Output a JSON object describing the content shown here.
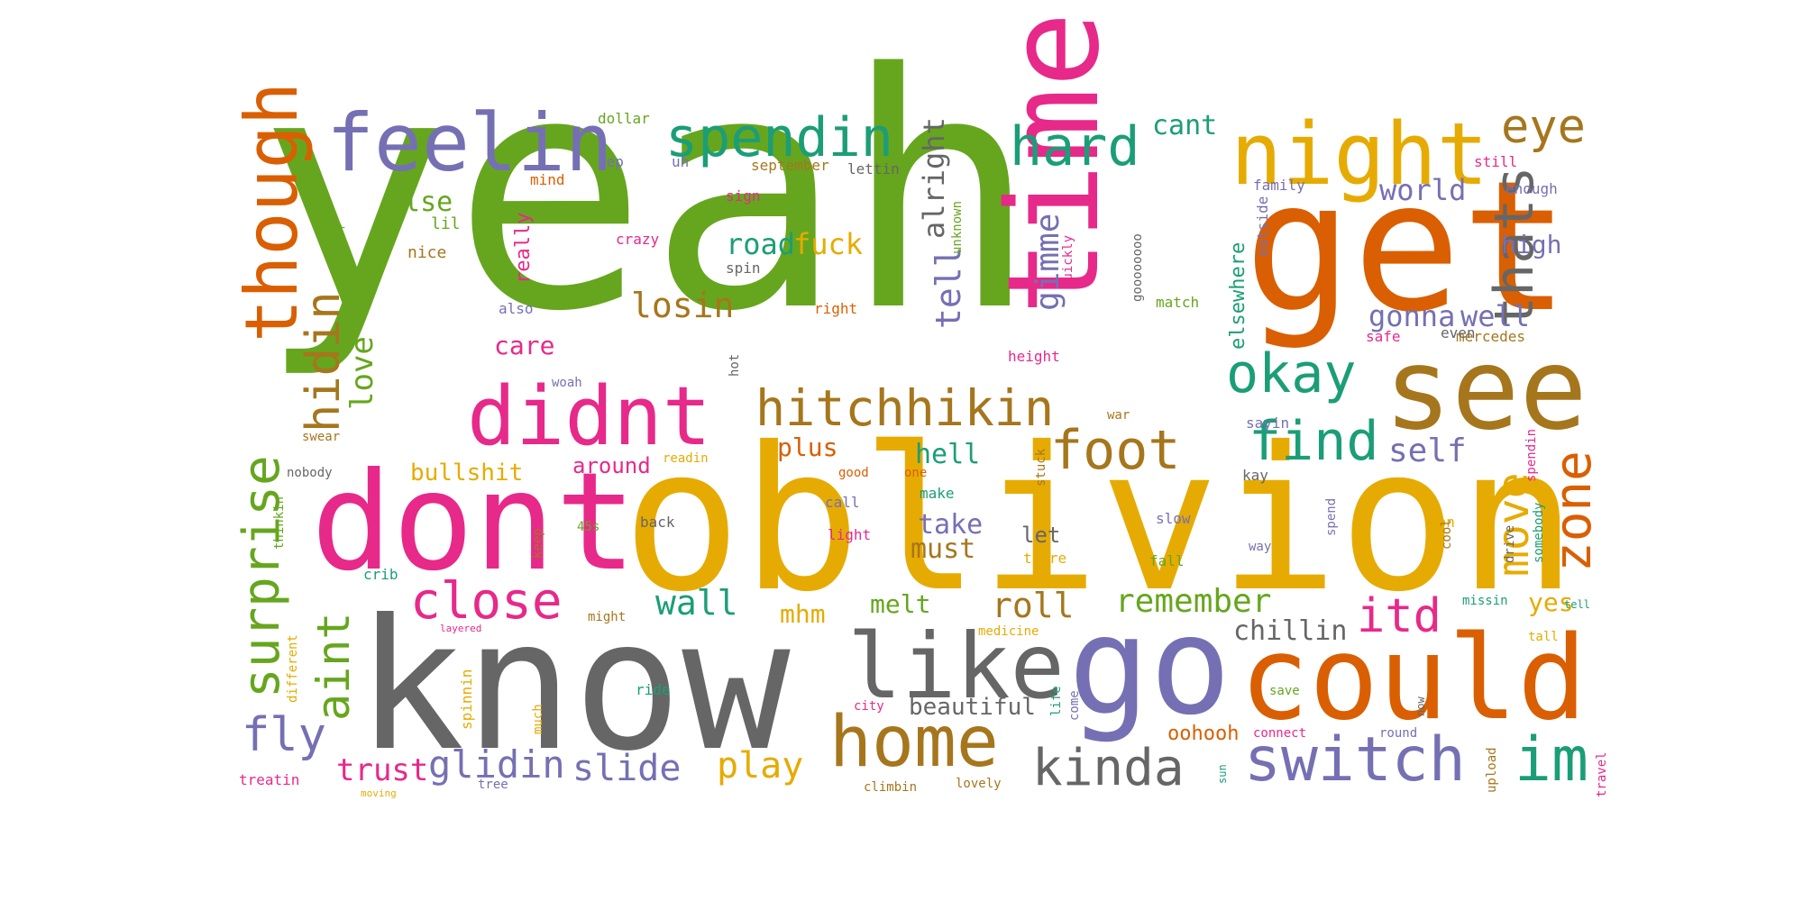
{
  "words": [
    {
      "text": "yeah",
      "color": "#66a61e"
    },
    {
      "text": "oblivion",
      "color": "#e6ab02"
    },
    {
      "text": "know",
      "color": "#666666"
    },
    {
      "text": "get",
      "color": "#d95f02"
    },
    {
      "text": "dont",
      "color": "#e7298a"
    },
    {
      "text": "time",
      "color": "#e7298a"
    },
    {
      "text": "go",
      "color": "#7570b3"
    },
    {
      "text": "could",
      "color": "#d95f02"
    },
    {
      "text": "see",
      "color": "#a6761d"
    },
    {
      "text": "night",
      "color": "#e6ab02"
    },
    {
      "text": "didnt",
      "color": "#e7298a"
    },
    {
      "text": "feelin",
      "color": "#7570b3"
    },
    {
      "text": "though",
      "color": "#d95f02"
    },
    {
      "text": "like",
      "color": "#666666"
    },
    {
      "text": "home",
      "color": "#a6761d"
    },
    {
      "text": "switch",
      "color": "#7570b3"
    },
    {
      "text": "im",
      "color": "#1b9e77"
    },
    {
      "text": "hitchhikin",
      "color": "#a6761d"
    },
    {
      "text": "spendin",
      "color": "#1b9e77"
    },
    {
      "text": "hard",
      "color": "#1b9e77"
    },
    {
      "text": "surprise",
      "color": "#66a61e"
    },
    {
      "text": "okay",
      "color": "#1b9e77"
    },
    {
      "text": "thats",
      "color": "#666666"
    },
    {
      "text": "foot",
      "color": "#a6761d"
    },
    {
      "text": "find",
      "color": "#1b9e77"
    },
    {
      "text": "zone",
      "color": "#d95f02"
    },
    {
      "text": "close",
      "color": "#e7298a"
    },
    {
      "text": "kinda",
      "color": "#666666"
    },
    {
      "text": "hidin",
      "color": "#a6761d"
    },
    {
      "text": "eye",
      "color": "#a6761d"
    },
    {
      "text": "aint",
      "color": "#66a61e"
    },
    {
      "text": "fly",
      "color": "#7570b3"
    },
    {
      "text": "move",
      "color": "#e6ab02"
    },
    {
      "text": "itd",
      "color": "#e7298a"
    },
    {
      "text": "glidin",
      "color": "#7570b3"
    },
    {
      "text": "slide",
      "color": "#7570b3"
    },
    {
      "text": "play",
      "color": "#e6ab02"
    },
    {
      "text": "remember",
      "color": "#66a61e"
    },
    {
      "text": "roll",
      "color": "#a6761d"
    },
    {
      "text": "losin",
      "color": "#a6761d"
    },
    {
      "text": "wall",
      "color": "#1b9e77"
    },
    {
      "text": "tell",
      "color": "#7570b3"
    },
    {
      "text": "gimme",
      "color": "#7570b3"
    },
    {
      "text": "alright",
      "color": "#666666"
    },
    {
      "text": "trust",
      "color": "#e7298a"
    },
    {
      "text": "love",
      "color": "#66a61e"
    },
    {
      "text": "self",
      "color": "#7570b3"
    },
    {
      "text": "gonna",
      "color": "#7570b3"
    },
    {
      "text": "well",
      "color": "#7570b3"
    },
    {
      "text": "road",
      "color": "#1b9e77"
    },
    {
      "text": "fuck",
      "color": "#e6ab02"
    },
    {
      "text": "world",
      "color": "#7570b3"
    },
    {
      "text": "chillin",
      "color": "#666666"
    },
    {
      "text": "cant",
      "color": "#1b9e77"
    },
    {
      "text": "must",
      "color": "#a6761d"
    },
    {
      "text": "take",
      "color": "#7570b3"
    },
    {
      "text": "hell",
      "color": "#1b9e77"
    },
    {
      "text": "plus",
      "color": "#d95f02"
    },
    {
      "text": "melt",
      "color": "#66a61e"
    },
    {
      "text": "mhm",
      "color": "#e6ab02"
    },
    {
      "text": "care",
      "color": "#e7298a"
    },
    {
      "text": "else",
      "color": "#66a61e"
    },
    {
      "text": "bullshit",
      "color": "#e6ab02"
    },
    {
      "text": "around",
      "color": "#e7298a"
    },
    {
      "text": "high",
      "color": "#7570b3"
    },
    {
      "text": "yes",
      "color": "#e6ab02"
    },
    {
      "text": "elsewhere",
      "color": "#1b9e77"
    },
    {
      "text": "beautiful",
      "color": "#666666"
    },
    {
      "text": "oohooh",
      "color": "#d95f02"
    },
    {
      "text": "let",
      "color": "#666666"
    },
    {
      "text": "really",
      "color": "#e7298a"
    },
    {
      "text": "lil",
      "color": "#66a61e"
    },
    {
      "text": "nice",
      "color": "#a6761d"
    },
    {
      "text": "treatin",
      "color": "#e7298a"
    },
    {
      "text": "spinnin",
      "color": "#e6ab02"
    },
    {
      "text": "dollar",
      "color": "#66a61e"
    },
    {
      "text": "mind",
      "color": "#d95f02"
    },
    {
      "text": "yep",
      "color": "#7570b3"
    },
    {
      "text": "uh",
      "color": "#7570b3"
    },
    {
      "text": "september",
      "color": "#a6761d"
    },
    {
      "text": "lettin",
      "color": "#666666"
    },
    {
      "text": "still",
      "color": "#e7298a"
    },
    {
      "text": "family",
      "color": "#7570b3"
    },
    {
      "text": "enough",
      "color": "#7570b3"
    },
    {
      "text": "sign",
      "color": "#e7298a"
    },
    {
      "text": "crazy",
      "color": "#e7298a"
    },
    {
      "text": "spin",
      "color": "#666666"
    },
    {
      "text": "set",
      "color": "#66a61e"
    },
    {
      "text": "also",
      "color": "#7570b3"
    },
    {
      "text": "right",
      "color": "#d95f02"
    },
    {
      "text": "unknown",
      "color": "#66a61e"
    },
    {
      "text": "quickly",
      "color": "#e7298a"
    },
    {
      "text": "goooooooo",
      "color": "#666666"
    },
    {
      "text": "outside",
      "color": "#7570b3"
    },
    {
      "text": "match",
      "color": "#66a61e"
    },
    {
      "text": "mercedes",
      "color": "#a6761d"
    },
    {
      "text": "safe",
      "color": "#e7298a"
    },
    {
      "text": "even",
      "color": "#666666"
    },
    {
      "text": "height",
      "color": "#e7298a"
    },
    {
      "text": "hot",
      "color": "#666666"
    },
    {
      "text": "woah",
      "color": "#7570b3"
    },
    {
      "text": "sayin",
      "color": "#7570b3"
    },
    {
      "text": "war",
      "color": "#a6761d"
    },
    {
      "text": "swear",
      "color": "#a6761d"
    },
    {
      "text": "nobody",
      "color": "#666666"
    },
    {
      "text": "readin",
      "color": "#e6ab02"
    },
    {
      "text": "good",
      "color": "#d95f02"
    },
    {
      "text": "one",
      "color": "#d95f02"
    },
    {
      "text": "stuck",
      "color": "#a6761d"
    },
    {
      "text": "kay",
      "color": "#666666"
    },
    {
      "text": "make",
      "color": "#1b9e77"
    },
    {
      "text": "call",
      "color": "#7570b3"
    },
    {
      "text": "thinkin",
      "color": "#66a61e"
    },
    {
      "text": "45s",
      "color": "#66a61e"
    },
    {
      "text": "back",
      "color": "#666666"
    },
    {
      "text": "light",
      "color": "#e7298a"
    },
    {
      "text": "slow",
      "color": "#7570b3"
    },
    {
      "text": "gon",
      "color": "#e6ab02"
    },
    {
      "text": "spend",
      "color": "#7570b3"
    },
    {
      "text": "way",
      "color": "#7570b3"
    },
    {
      "text": "spendin",
      "color": "#e7298a"
    },
    {
      "text": "somebody",
      "color": "#1b9e77"
    },
    {
      "text": "keep",
      "color": "#a6761d"
    },
    {
      "text": "crib",
      "color": "#1b9e77"
    },
    {
      "text": "there",
      "color": "#e6ab02"
    },
    {
      "text": "fall",
      "color": "#66a61e"
    },
    {
      "text": "cool",
      "color": "#a6761d"
    },
    {
      "text": "drive",
      "color": "#666666"
    },
    {
      "text": "missin",
      "color": "#1b9e77"
    },
    {
      "text": "tell",
      "color": "#1b9e77"
    },
    {
      "text": "might",
      "color": "#a6761d"
    },
    {
      "text": "layered",
      "color": "#e7298a"
    },
    {
      "text": "medicine",
      "color": "#e6ab02"
    },
    {
      "text": "different",
      "color": "#e6ab02"
    },
    {
      "text": "tall",
      "color": "#e6ab02"
    },
    {
      "text": "ride",
      "color": "#1b9e77"
    },
    {
      "text": "city",
      "color": "#e7298a"
    },
    {
      "text": "life",
      "color": "#1b9e77"
    },
    {
      "text": "come",
      "color": "#7570b3"
    },
    {
      "text": "save",
      "color": "#66a61e"
    },
    {
      "text": "now",
      "color": "#666666"
    },
    {
      "text": "much",
      "color": "#e6ab02"
    },
    {
      "text": "connect",
      "color": "#e7298a"
    },
    {
      "text": "round",
      "color": "#7570b3"
    },
    {
      "text": "upload",
      "color": "#a6761d"
    },
    {
      "text": "travel",
      "color": "#e7298a"
    },
    {
      "text": "sun",
      "color": "#1b9e77"
    },
    {
      "text": "tree",
      "color": "#7570b3"
    },
    {
      "text": "moving",
      "color": "#e6ab02"
    },
    {
      "text": "climbin",
      "color": "#a6761d"
    },
    {
      "text": "lovely",
      "color": "#a6761d"
    }
  ]
}
